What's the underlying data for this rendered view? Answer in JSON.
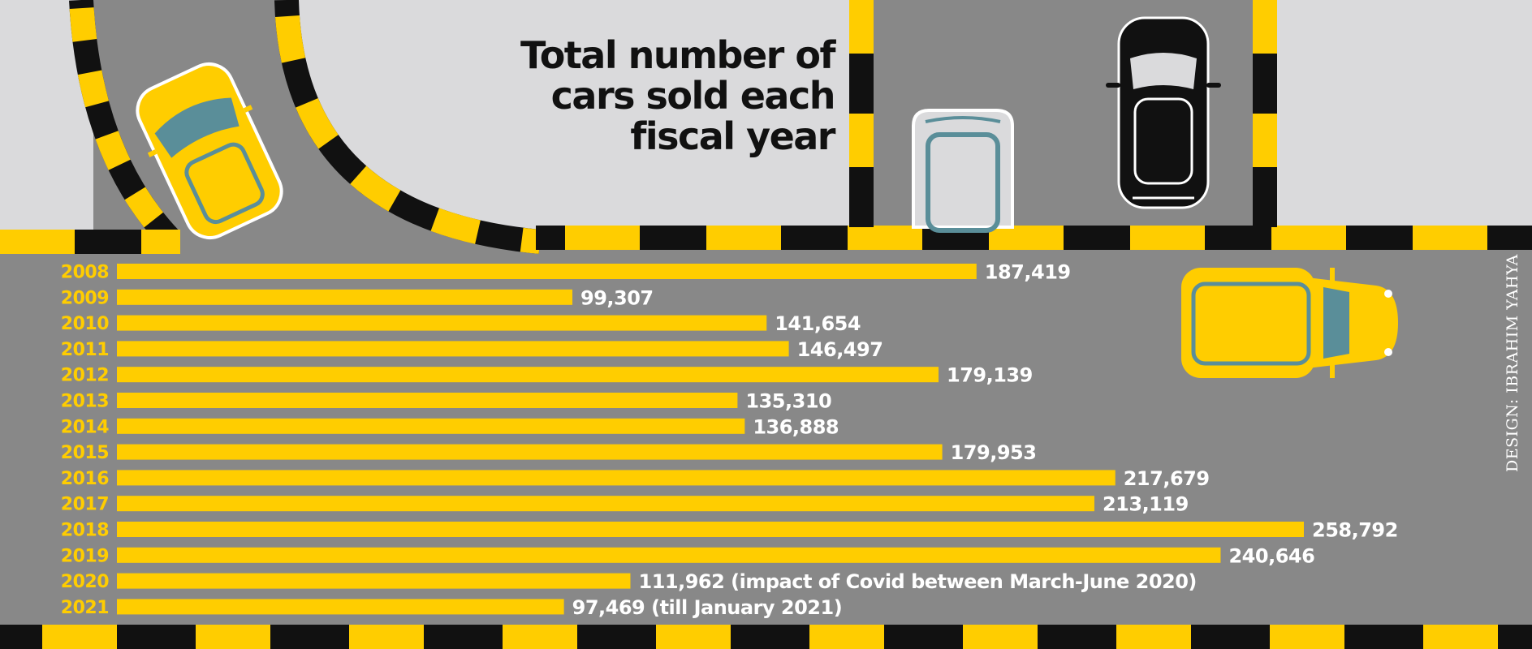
{
  "chart_data": {
    "type": "bar",
    "orientation": "horizontal",
    "title": "Total number of cars sold each fiscal year",
    "title_lines": [
      "Total number of",
      "cars sold each",
      "fiscal year"
    ],
    "categories": [
      "2008",
      "2009",
      "2010",
      "2011",
      "2012",
      "2013",
      "2014",
      "2015",
      "2016",
      "2017",
      "2018",
      "2019",
      "2020",
      "2021"
    ],
    "values": [
      187419,
      99307,
      141654,
      146497,
      179139,
      135310,
      136888,
      179953,
      217679,
      213119,
      258792,
      240646,
      111962,
      97469
    ],
    "value_labels": [
      "187,419",
      "99,307",
      "141,654",
      "146,497",
      "179,139",
      "135,310",
      "136,888",
      "179,953",
      "217,679",
      "213,119",
      "258,792",
      "240,646",
      "111,962 (impact of Covid between March-June 2020)",
      "97,469 (till January 2021)"
    ],
    "xlabel": "",
    "ylabel": "",
    "xlim": [
      0,
      270000
    ],
    "grid": false,
    "legend": "none"
  },
  "credit": "DESIGN: IBRAHIM YAHYA",
  "colors": {
    "road": "#888888",
    "pavement": "#DADADC",
    "stripe_yellow": "#FFCD00",
    "stripe_black": "#111111",
    "bar": "#FFCD00",
    "year_label": "#FFCD00",
    "value_label": "#FFFFFF",
    "car_teal": "#5A8E99"
  },
  "icons": [
    "yellow-car-icon",
    "white-car-icon",
    "black-car-icon",
    "yellow-car-side-icon"
  ]
}
